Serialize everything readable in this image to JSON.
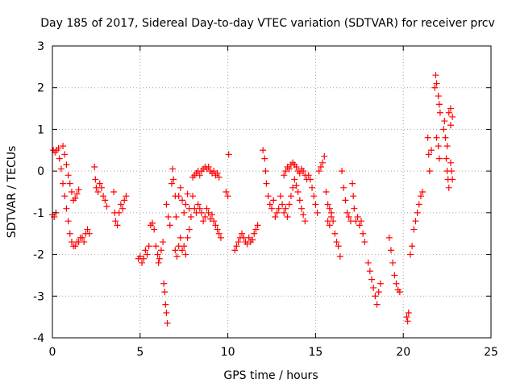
{
  "chart_data": {
    "type": "scatter",
    "title": "Day 185 of 2017, Sidereal Day-to-day VTEC variation (SDTVAR) for receiver prcv",
    "xlabel": "GPS time / hours",
    "ylabel": "SDTVAR / TECUs",
    "xlim": [
      0,
      25
    ],
    "ylim": [
      -4,
      3
    ],
    "xticks": [
      "0",
      "5",
      "10",
      "15",
      "20",
      "25"
    ],
    "yticks": [
      "-4",
      "-3",
      "-2",
      "-1",
      "0",
      "1",
      "2",
      "3"
    ],
    "grid": true,
    "marker": "+",
    "color": "#ff0000",
    "series": [
      {
        "name": "SDTVAR",
        "points": [
          [
            0.0,
            -1.05
          ],
          [
            0.1,
            -1.1
          ],
          [
            0.2,
            -1.0
          ],
          [
            0.05,
            0.5
          ],
          [
            0.15,
            0.45
          ],
          [
            0.25,
            0.5
          ],
          [
            0.35,
            0.55
          ],
          [
            0.4,
            0.3
          ],
          [
            0.5,
            0.05
          ],
          [
            0.6,
            -0.3
          ],
          [
            0.7,
            -0.6
          ],
          [
            0.8,
            -0.9
          ],
          [
            0.9,
            -1.2
          ],
          [
            1.0,
            -1.5
          ],
          [
            1.1,
            -1.7
          ],
          [
            1.2,
            -1.8
          ],
          [
            0.6,
            0.6
          ],
          [
            0.7,
            0.4
          ],
          [
            0.8,
            0.15
          ],
          [
            0.9,
            -0.1
          ],
          [
            1.0,
            -0.3
          ],
          [
            1.1,
            -0.5
          ],
          [
            1.2,
            -0.7
          ],
          [
            1.3,
            -0.65
          ],
          [
            1.4,
            -0.55
          ],
          [
            1.5,
            -0.45
          ],
          [
            1.3,
            -1.8
          ],
          [
            1.4,
            -1.7
          ],
          [
            1.5,
            -1.7
          ],
          [
            1.6,
            -1.6
          ],
          [
            1.7,
            -1.6
          ],
          [
            1.8,
            -1.7
          ],
          [
            1.9,
            -1.5
          ],
          [
            2.0,
            -1.4
          ],
          [
            2.1,
            -1.5
          ],
          [
            2.4,
            0.1
          ],
          [
            2.45,
            -0.2
          ],
          [
            2.5,
            -0.4
          ],
          [
            2.6,
            -0.5
          ],
          [
            2.7,
            -0.3
          ],
          [
            2.8,
            -0.4
          ],
          [
            2.9,
            -0.6
          ],
          [
            3.0,
            -0.7
          ],
          [
            3.1,
            -0.85
          ],
          [
            3.5,
            -0.5
          ],
          [
            3.55,
            -1.0
          ],
          [
            3.6,
            -1.2
          ],
          [
            3.7,
            -1.3
          ],
          [
            3.8,
            -1.0
          ],
          [
            3.9,
            -0.8
          ],
          [
            4.0,
            -0.9
          ],
          [
            4.1,
            -0.7
          ],
          [
            4.2,
            -0.6
          ],
          [
            4.9,
            -2.1
          ],
          [
            5.0,
            -2.05
          ],
          [
            5.1,
            -2.2
          ],
          [
            5.2,
            -2.1
          ],
          [
            5.3,
            -1.9
          ],
          [
            5.4,
            -2.0
          ],
          [
            5.5,
            -1.8
          ],
          [
            5.6,
            -1.3
          ],
          [
            5.7,
            -1.25
          ],
          [
            5.8,
            -1.4
          ],
          [
            5.9,
            -1.8
          ],
          [
            6.0,
            -2.0
          ],
          [
            6.05,
            -2.2
          ],
          [
            6.1,
            -2.1
          ],
          [
            6.2,
            -1.9
          ],
          [
            6.3,
            -1.7
          ],
          [
            6.35,
            -2.7
          ],
          [
            6.4,
            -2.9
          ],
          [
            6.45,
            -3.2
          ],
          [
            6.5,
            -3.4
          ],
          [
            6.55,
            -3.65
          ],
          [
            6.5,
            -0.8
          ],
          [
            6.6,
            -1.1
          ],
          [
            6.7,
            -1.3
          ],
          [
            6.8,
            -0.3
          ],
          [
            6.85,
            0.05
          ],
          [
            6.9,
            -0.2
          ],
          [
            7.0,
            -0.6
          ],
          [
            7.05,
            -1.1
          ],
          [
            7.0,
            -1.9
          ],
          [
            7.1,
            -2.05
          ],
          [
            7.2,
            -1.8
          ],
          [
            7.3,
            -1.6
          ],
          [
            7.4,
            -1.9
          ],
          [
            7.5,
            -1.8
          ],
          [
            7.6,
            -2.0
          ],
          [
            7.7,
            -1.6
          ],
          [
            7.8,
            -1.4
          ],
          [
            7.2,
            -0.6
          ],
          [
            7.3,
            -0.4
          ],
          [
            7.4,
            -0.7
          ],
          [
            7.5,
            -1.0
          ],
          [
            7.6,
            -0.8
          ],
          [
            7.7,
            -0.55
          ],
          [
            7.8,
            -0.9
          ],
          [
            7.9,
            -1.1
          ],
          [
            8.0,
            -0.6
          ],
          [
            8.1,
            -0.9
          ],
          [
            8.2,
            -1.0
          ],
          [
            8.3,
            -0.8
          ],
          [
            8.4,
            -0.9
          ],
          [
            8.5,
            -1.0
          ],
          [
            8.6,
            -1.2
          ],
          [
            8.7,
            -1.1
          ],
          [
            8.8,
            -0.9
          ],
          [
            8.9,
            -1.0
          ],
          [
            9.0,
            -1.15
          ],
          [
            9.1,
            -1.05
          ],
          [
            9.2,
            -1.2
          ],
          [
            9.3,
            -1.3
          ],
          [
            9.4,
            -1.4
          ],
          [
            9.5,
            -1.5
          ],
          [
            9.6,
            -1.6
          ],
          [
            8.0,
            -0.15
          ],
          [
            8.1,
            -0.1
          ],
          [
            8.2,
            -0.05
          ],
          [
            8.3,
            0.0
          ],
          [
            8.4,
            -0.1
          ],
          [
            8.5,
            0.0
          ],
          [
            8.6,
            0.05
          ],
          [
            8.7,
            0.1
          ],
          [
            8.8,
            0.05
          ],
          [
            8.9,
            0.1
          ],
          [
            9.0,
            0.0
          ],
          [
            9.1,
            -0.05
          ],
          [
            9.2,
            0.0
          ],
          [
            9.3,
            -0.1
          ],
          [
            9.4,
            -0.05
          ],
          [
            9.5,
            -0.15
          ],
          [
            9.9,
            -0.5
          ],
          [
            10.0,
            -0.6
          ],
          [
            10.05,
            0.4
          ],
          [
            10.4,
            -1.9
          ],
          [
            10.5,
            -1.8
          ],
          [
            10.6,
            -1.7
          ],
          [
            10.7,
            -1.6
          ],
          [
            10.8,
            -1.5
          ],
          [
            10.9,
            -1.6
          ],
          [
            11.0,
            -1.7
          ],
          [
            11.1,
            -1.75
          ],
          [
            11.2,
            -1.6
          ],
          [
            11.3,
            -1.7
          ],
          [
            11.4,
            -1.65
          ],
          [
            11.5,
            -1.5
          ],
          [
            11.6,
            -1.4
          ],
          [
            11.7,
            -1.3
          ],
          [
            12.0,
            0.5
          ],
          [
            12.1,
            0.3
          ],
          [
            12.15,
            0.0
          ],
          [
            12.2,
            -0.3
          ],
          [
            12.3,
            -0.6
          ],
          [
            12.4,
            -0.8
          ],
          [
            12.5,
            -0.9
          ],
          [
            12.6,
            -0.7
          ],
          [
            12.7,
            -1.1
          ],
          [
            12.8,
            -1.0
          ],
          [
            12.9,
            -0.9
          ],
          [
            13.0,
            -0.6
          ],
          [
            13.1,
            -0.8
          ],
          [
            13.2,
            -1.0
          ],
          [
            13.3,
            -0.9
          ],
          [
            13.4,
            -1.1
          ],
          [
            13.5,
            -0.8
          ],
          [
            13.6,
            -0.6
          ],
          [
            13.7,
            -0.4
          ],
          [
            13.8,
            -0.2
          ],
          [
            13.9,
            -0.35
          ],
          [
            14.0,
            -0.5
          ],
          [
            14.1,
            -0.7
          ],
          [
            14.2,
            -0.9
          ],
          [
            14.3,
            -1.05
          ],
          [
            14.4,
            -1.2
          ],
          [
            13.2,
            -0.1
          ],
          [
            13.3,
            0.0
          ],
          [
            13.4,
            0.1
          ],
          [
            13.5,
            0.05
          ],
          [
            13.6,
            0.15
          ],
          [
            13.7,
            0.2
          ],
          [
            13.8,
            0.15
          ],
          [
            13.9,
            0.1
          ],
          [
            14.0,
            0.0
          ],
          [
            14.1,
            -0.05
          ],
          [
            14.2,
            0.05
          ],
          [
            14.3,
            0.0
          ],
          [
            14.4,
            -0.1
          ],
          [
            14.5,
            -0.2
          ],
          [
            14.6,
            -0.1
          ],
          [
            14.7,
            -0.2
          ],
          [
            14.8,
            -0.4
          ],
          [
            14.9,
            -0.6
          ],
          [
            15.0,
            -0.8
          ],
          [
            15.1,
            -1.0
          ],
          [
            15.2,
            0.0
          ],
          [
            15.3,
            0.1
          ],
          [
            15.4,
            0.2
          ],
          [
            15.5,
            0.35
          ],
          [
            15.6,
            -0.5
          ],
          [
            15.7,
            -0.8
          ],
          [
            15.8,
            -0.9
          ],
          [
            15.9,
            -1.0
          ],
          [
            16.0,
            -1.2
          ],
          [
            16.1,
            -1.5
          ],
          [
            16.2,
            -1.7
          ],
          [
            16.3,
            -1.8
          ],
          [
            16.4,
            -2.05
          ],
          [
            15.7,
            -1.2
          ],
          [
            15.8,
            -1.3
          ],
          [
            15.9,
            -1.1
          ],
          [
            16.5,
            0.0
          ],
          [
            16.6,
            -0.4
          ],
          [
            16.7,
            -0.7
          ],
          [
            16.8,
            -1.0
          ],
          [
            16.9,
            -1.1
          ],
          [
            17.0,
            -1.2
          ],
          [
            17.1,
            -0.3
          ],
          [
            17.15,
            -0.6
          ],
          [
            17.2,
            -0.9
          ],
          [
            17.3,
            -1.2
          ],
          [
            17.4,
            -1.1
          ],
          [
            17.5,
            -1.3
          ],
          [
            17.6,
            -1.2
          ],
          [
            17.7,
            -1.5
          ],
          [
            17.8,
            -1.7
          ],
          [
            18.0,
            -2.2
          ],
          [
            18.1,
            -2.4
          ],
          [
            18.2,
            -2.6
          ],
          [
            18.3,
            -2.8
          ],
          [
            18.4,
            -3.0
          ],
          [
            18.5,
            -3.2
          ],
          [
            18.6,
            -2.9
          ],
          [
            18.7,
            -2.7
          ],
          [
            19.2,
            -1.6
          ],
          [
            19.3,
            -1.9
          ],
          [
            19.4,
            -2.2
          ],
          [
            19.5,
            -2.5
          ],
          [
            19.6,
            -2.7
          ],
          [
            19.7,
            -2.85
          ],
          [
            19.8,
            -2.9
          ],
          [
            20.2,
            -3.5
          ],
          [
            20.25,
            -3.6
          ],
          [
            20.3,
            -3.4
          ],
          [
            20.4,
            -2.0
          ],
          [
            20.5,
            -1.8
          ],
          [
            20.6,
            -1.4
          ],
          [
            20.7,
            -1.2
          ],
          [
            20.8,
            -1.0
          ],
          [
            20.9,
            -0.8
          ],
          [
            21.0,
            -0.6
          ],
          [
            21.1,
            -0.5
          ],
          [
            21.4,
            0.8
          ],
          [
            21.45,
            0.4
          ],
          [
            21.5,
            0.0
          ],
          [
            21.6,
            0.5
          ],
          [
            21.8,
            2.0
          ],
          [
            21.85,
            2.3
          ],
          [
            21.9,
            2.1
          ],
          [
            22.0,
            1.8
          ],
          [
            22.05,
            1.6
          ],
          [
            22.1,
            1.4
          ],
          [
            21.9,
            0.8
          ],
          [
            22.0,
            0.6
          ],
          [
            22.05,
            0.3
          ],
          [
            22.3,
            1.0
          ],
          [
            22.35,
            1.2
          ],
          [
            22.4,
            0.8
          ],
          [
            22.5,
            0.6
          ],
          [
            22.45,
            0.3
          ],
          [
            22.5,
            0.0
          ],
          [
            22.55,
            -0.2
          ],
          [
            22.6,
            -0.4
          ],
          [
            22.6,
            1.4
          ],
          [
            22.7,
            1.5
          ],
          [
            22.8,
            1.3
          ],
          [
            22.7,
            1.1
          ],
          [
            22.7,
            0.2
          ],
          [
            22.75,
            0.0
          ],
          [
            22.8,
            -0.2
          ]
        ]
      }
    ]
  }
}
